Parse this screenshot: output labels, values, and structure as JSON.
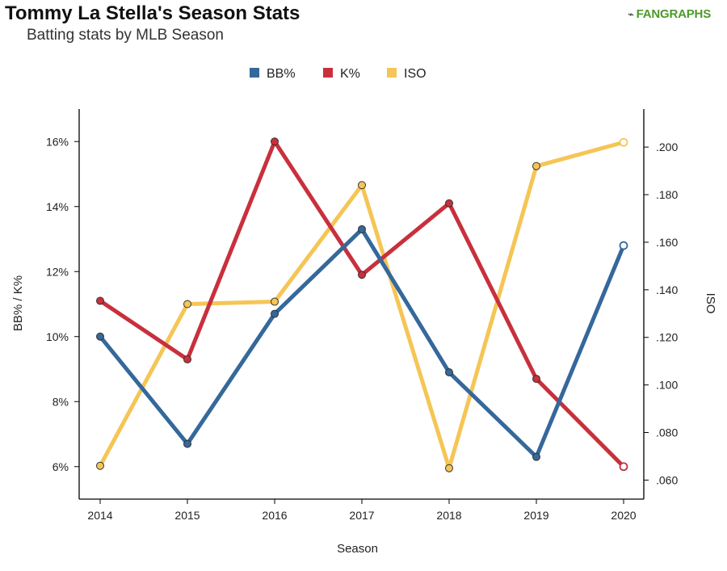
{
  "header": {
    "title": "Tommy La Stella's Season Stats",
    "subtitle": "Batting stats by MLB Season",
    "logo_text": "FANGRAPHS"
  },
  "chart_data": {
    "type": "line",
    "title": "Tommy La Stella's Season Stats",
    "subtitle": "Batting stats by MLB Season",
    "xlabel": "Season",
    "ylabel_left": "BB% / K%",
    "ylabel_right": "ISO",
    "legend_placement": "top-center",
    "grid": false,
    "x": [
      2014,
      2015,
      2016,
      2017,
      2018,
      2019,
      2020
    ],
    "x_tick_labels": [
      "2014",
      "2015",
      "2016",
      "2017",
      "2018",
      "2019",
      "2020"
    ],
    "y_left_range": [
      5,
      17
    ],
    "y_left_ticks": [
      6,
      8,
      10,
      12,
      14,
      16
    ],
    "y_left_tick_labels": [
      "6%",
      "8%",
      "10%",
      "12%",
      "14%",
      "16%"
    ],
    "y_right_range": [
      0.052,
      0.216
    ],
    "y_right_ticks": [
      0.06,
      0.08,
      0.1,
      0.12,
      0.14,
      0.16,
      0.18,
      0.2
    ],
    "y_right_tick_labels": [
      ".060",
      ".080",
      ".100",
      ".120",
      ".140",
      ".160",
      ".180",
      ".200"
    ],
    "series": [
      {
        "name": "BB%",
        "axis": "left",
        "color": "#35689b",
        "values": [
          10.0,
          6.7,
          10.7,
          13.3,
          8.9,
          6.3,
          12.8
        ]
      },
      {
        "name": "K%",
        "axis": "left",
        "color": "#c8303c",
        "values": [
          11.1,
          9.3,
          16.0,
          11.9,
          14.1,
          8.7,
          6.0
        ]
      },
      {
        "name": "ISO",
        "axis": "right",
        "color": "#f5c555",
        "values": [
          0.066,
          0.134,
          0.135,
          0.184,
          0.065,
          0.192,
          0.202
        ]
      }
    ]
  }
}
